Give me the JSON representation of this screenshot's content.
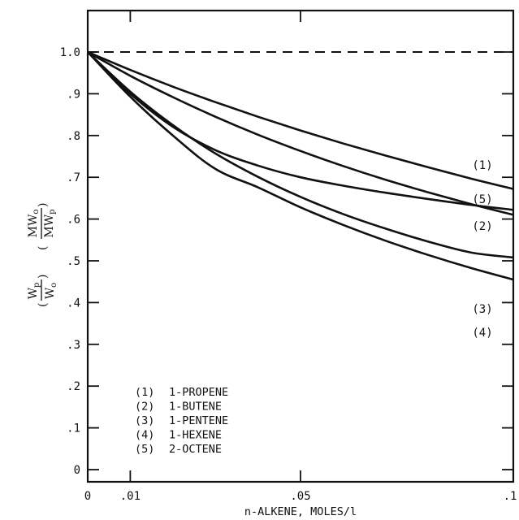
{
  "chart_data": {
    "type": "line",
    "xlabel": "n-ALKENE, MOLES/l",
    "ylabel": {
      "factor1_num": "W",
      "factor1_num_sub": "p",
      "factor1_den": "W",
      "factor1_den_sub": "o",
      "factor2_num": "MW",
      "factor2_num_sub": "o",
      "factor2_den": "MW",
      "factor2_den_sub": "p"
    },
    "xlim": [
      0,
      0.1
    ],
    "ylim": [
      0,
      1.07
    ],
    "x_ticks": [
      {
        "value": 0,
        "label": "0"
      },
      {
        "value": 0.01,
        "label": ".01"
      },
      {
        "value": 0.05,
        "label": ".05"
      },
      {
        "value": 0.1,
        "label": ".1"
      }
    ],
    "y_ticks": [
      {
        "value": 0,
        "label": "0"
      },
      {
        "value": 0.1,
        "label": ".1"
      },
      {
        "value": 0.2,
        "label": ".2"
      },
      {
        "value": 0.3,
        "label": ".3"
      },
      {
        "value": 0.4,
        "label": ".4"
      },
      {
        "value": 0.5,
        "label": ".5"
      },
      {
        "value": 0.6,
        "label": ".6"
      },
      {
        "value": 0.7,
        "label": ".7"
      },
      {
        "value": 0.8,
        "label": ".8"
      },
      {
        "value": 0.9,
        "label": ".9"
      },
      {
        "value": 1.0,
        "label": "1.0"
      }
    ],
    "reference_line": {
      "y": 1.0,
      "style": "dashed"
    },
    "series": [
      {
        "name": "1-PROPENE",
        "label": "(1)",
        "x": [
          0,
          0.01,
          0.02,
          0.03,
          0.04,
          0.05,
          0.06,
          0.07,
          0.08,
          0.09,
          0.1
        ],
        "y": [
          1.0,
          0.957,
          0.917,
          0.88,
          0.845,
          0.812,
          0.781,
          0.752,
          0.724,
          0.697,
          0.672
        ]
      },
      {
        "name": "1-BUTENE",
        "label": "(2)",
        "x": [
          0,
          0.01,
          0.02,
          0.03,
          0.04,
          0.05,
          0.06,
          0.07,
          0.08,
          0.09,
          0.1
        ],
        "y": [
          1.0,
          0.943,
          0.892,
          0.845,
          0.802,
          0.763,
          0.727,
          0.694,
          0.664,
          0.636,
          0.61
        ]
      },
      {
        "name": "1-PENTENE",
        "label": "(3)",
        "x": [
          0,
          0.01,
          0.02,
          0.03,
          0.04,
          0.05,
          0.06,
          0.07,
          0.08,
          0.09,
          0.1
        ],
        "y": [
          1.0,
          0.905,
          0.825,
          0.757,
          0.701,
          0.653,
          0.612,
          0.577,
          0.546,
          0.52,
          0.508
        ]
      },
      {
        "name": "1-HEXENE",
        "label": "(4)",
        "x": [
          0,
          0.01,
          0.02,
          0.03,
          0.04,
          0.05,
          0.06,
          0.07,
          0.08,
          0.09,
          0.1
        ],
        "y": [
          1.0,
          0.893,
          0.8,
          0.72,
          0.676,
          0.628,
          0.586,
          0.548,
          0.514,
          0.483,
          0.455
        ]
      },
      {
        "name": "2-OCTENE",
        "label": "(5)",
        "x": [
          0,
          0.01,
          0.02,
          0.03,
          0.04,
          0.05,
          0.06,
          0.07,
          0.08,
          0.09,
          0.1
        ],
        "y": [
          1.0,
          0.9,
          0.821,
          0.765,
          0.728,
          0.7,
          0.68,
          0.663,
          0.648,
          0.634,
          0.622
        ]
      }
    ],
    "legend": {
      "position": "bottom-left",
      "entries": [
        {
          "key": "(1)",
          "text": "1-PROPENE"
        },
        {
          "key": "(2)",
          "text": "1-BUTENE"
        },
        {
          "key": "(3)",
          "text": "1-PENTENE"
        },
        {
          "key": "(4)",
          "text": "1-HEXENE"
        },
        {
          "key": "(5)",
          "text": "2-OCTENE"
        }
      ]
    },
    "grid": false,
    "line_color": "#111111"
  }
}
